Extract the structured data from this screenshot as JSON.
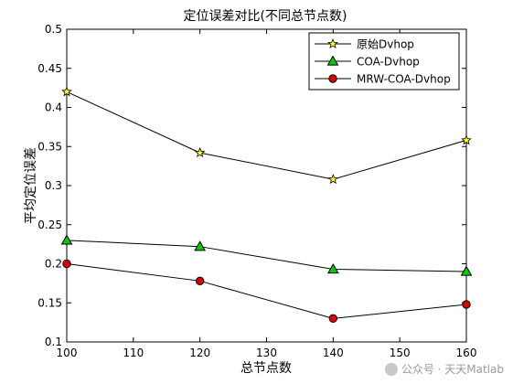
{
  "chart_data": {
    "type": "line",
    "title": "定位误差对比(不同总节点数)",
    "xlabel": "总节点数",
    "ylabel": "平均定位误差",
    "x": [
      100,
      120,
      140,
      160
    ],
    "xlim": [
      100,
      160
    ],
    "ylim": [
      0.1,
      0.5
    ],
    "xticks": [
      "100",
      "110",
      "120",
      "130",
      "140",
      "150",
      "160"
    ],
    "yticks": [
      "0.1",
      "0.15",
      "0.2",
      "0.25",
      "0.3",
      "0.35",
      "0.4",
      "0.45",
      "0.5"
    ],
    "grid": false,
    "legend_position": "top-right",
    "series": [
      {
        "name": "原始Dvhop",
        "marker": "star",
        "marker_color": "#ffff00",
        "line_color": "#000000",
        "values": [
          0.42,
          0.342,
          0.308,
          0.358
        ]
      },
      {
        "name": "COA-Dvhop",
        "marker": "triangle",
        "marker_color": "#00cc00",
        "line_color": "#000000",
        "values": [
          0.23,
          0.222,
          0.193,
          0.19
        ]
      },
      {
        "name": "MRW-COA-Dvhop",
        "marker": "circle",
        "marker_color": "#dd0000",
        "line_color": "#000000",
        "values": [
          0.2,
          0.178,
          0.13,
          0.148
        ]
      }
    ]
  },
  "watermark": {
    "text": "公众号 · 天天Matlab",
    "icon": "wechat-icon"
  }
}
